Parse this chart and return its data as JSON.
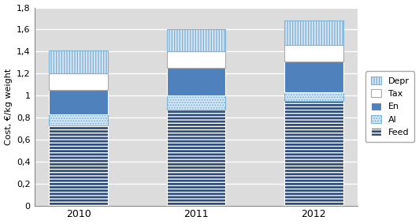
{
  "years": [
    "2010",
    "2011",
    "2012"
  ],
  "Feed": [
    0.73,
    0.87,
    0.95
  ],
  "Al": [
    0.1,
    0.13,
    0.08
  ],
  "En": [
    0.22,
    0.25,
    0.28
  ],
  "Tax": [
    0.15,
    0.15,
    0.15
  ],
  "Depr": [
    0.21,
    0.2,
    0.22
  ],
  "ylabel": "Cost, €/kg weight",
  "ylim": [
    0,
    1.8
  ],
  "yticks": [
    0,
    0.2,
    0.4,
    0.6,
    0.8,
    1.0,
    1.2,
    1.4,
    1.6,
    1.8
  ],
  "ytick_labels": [
    "0",
    "0,2",
    "0,4",
    "0,6",
    "0,8",
    "1",
    "1,2",
    "1,4",
    "1,6",
    "1,8"
  ],
  "feed_facecolor": "#2E4D7B",
  "feed_edgecolor": "#FFFFFF",
  "al_facecolor": "#D6E8F5",
  "al_edgecolor": "#7EB4D9",
  "en_facecolor": "#4F81BD",
  "en_edgecolor": "#FFFFFF",
  "tax_facecolor": "#FFFFFF",
  "tax_edgecolor": "#AAAAAA",
  "depr_facecolor": "#DCE6F1",
  "depr_edgecolor": "#7EB4D9",
  "bar_width": 0.5,
  "bg_color": "#FFFFFF",
  "plot_bg_color": "#DCDCDC"
}
